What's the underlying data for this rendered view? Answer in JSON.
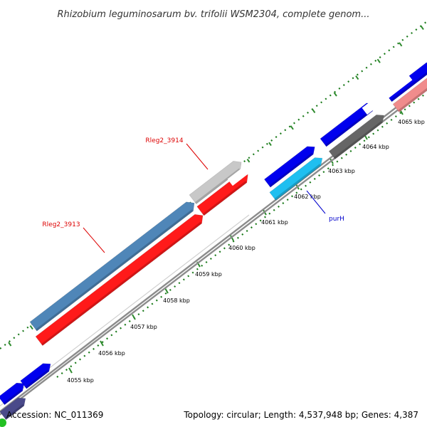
{
  "title": "Rhizobium leguminosarum bv. trifolii WSM2304, complete genom...",
  "footer": {
    "accession": "Accession: NC_011369",
    "summary": "Topology: circular; Length: 4,537,948 bp; Genes: 4,387"
  },
  "colors": {
    "backbone": "#8c8c8c",
    "tick": "#2e8b2e",
    "minor_tick": "#1a7a1a",
    "forward_blue": "#0000ee",
    "steel_blue": "#4f86b8",
    "red": "#ff1a1a",
    "light_gray": "#c8c8c8",
    "dark_gray": "#666666",
    "cyan": "#1fbff0",
    "pink": "#f08c8c",
    "label_red": "#dd0000",
    "label_blue": "#0000cc"
  },
  "tick_labels": [
    "4055 kbp",
    "4056 kbp",
    "4057 kbp",
    "4058 kbp",
    "4059 kbp",
    "4060 kbp",
    "4061 kbp",
    "4062 kbp",
    "4063 kbp",
    "4064 kbp",
    "4065 kbp"
  ],
  "gene_labels": [
    {
      "text": "Rleg2_3914",
      "color": "red"
    },
    {
      "text": "Rleg2_3913",
      "color": "red"
    },
    {
      "text": "purH",
      "color": "blue"
    }
  ]
}
